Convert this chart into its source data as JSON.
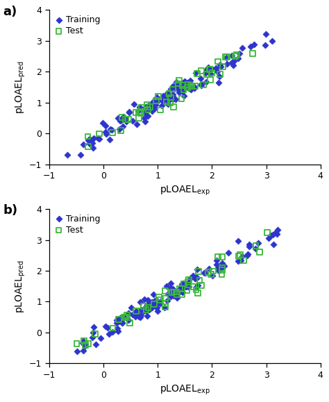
{
  "xlim": [
    -1,
    4
  ],
  "ylim": [
    -1,
    4
  ],
  "xticks": [
    -1,
    0,
    1,
    2,
    3,
    4
  ],
  "yticks": [
    -1,
    0,
    1,
    2,
    3,
    4
  ],
  "xlabel": "pLOAEL$_\\mathrm{exp}$",
  "ylabel": "pLOAEL$_\\mathrm{pred}$",
  "training_color": "#2E34CC",
  "test_color": "#3CB83C",
  "panel_labels": [
    "a)",
    "b)"
  ],
  "n_train_a": 130,
  "n_test_a": 52,
  "n_train_b": 130,
  "n_test_b": 52,
  "seed_a_train": 10,
  "seed_a_test": 20,
  "seed_b_train": 30,
  "seed_b_test": 40,
  "noise_a_train": 0.16,
  "noise_a_test": 0.16,
  "noise_b_train": 0.16,
  "noise_b_test": 0.16,
  "background_color": "#ffffff",
  "fig_facecolor": "#ffffff"
}
